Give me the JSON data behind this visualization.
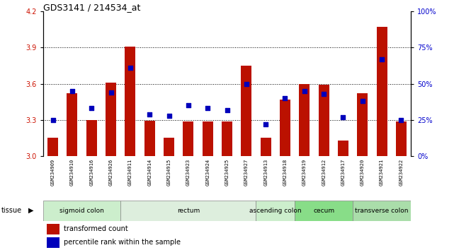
{
  "title": "GDS3141 / 214534_at",
  "samples": [
    "GSM234909",
    "GSM234910",
    "GSM234916",
    "GSM234926",
    "GSM234911",
    "GSM234914",
    "GSM234915",
    "GSM234923",
    "GSM234924",
    "GSM234925",
    "GSM234927",
    "GSM234913",
    "GSM234918",
    "GSM234919",
    "GSM234912",
    "GSM234917",
    "GSM234920",
    "GSM234921",
    "GSM234922"
  ],
  "transformed_count": [
    3.155,
    3.52,
    3.3,
    3.61,
    3.91,
    3.295,
    3.155,
    3.285,
    3.29,
    3.29,
    3.75,
    3.155,
    3.47,
    3.6,
    3.59,
    3.13,
    3.52,
    4.07,
    3.29
  ],
  "percentile_rank": [
    25,
    45,
    33,
    44,
    61,
    29,
    28,
    35,
    33,
    32,
    50,
    22,
    40,
    45,
    43,
    27,
    38,
    67,
    25
  ],
  "ylim_left": [
    3.0,
    4.2
  ],
  "ylim_right": [
    0,
    100
  ],
  "yticks_left": [
    3.0,
    3.3,
    3.6,
    3.9,
    4.2
  ],
  "yticks_right": [
    0,
    25,
    50,
    75,
    100
  ],
  "hlines": [
    3.3,
    3.6,
    3.9
  ],
  "tissue_groups": [
    {
      "label": "sigmoid colon",
      "start": 0,
      "end": 4,
      "color": "#cceecc"
    },
    {
      "label": "rectum",
      "start": 4,
      "end": 11,
      "color": "#ddeedd"
    },
    {
      "label": "ascending colon",
      "start": 11,
      "end": 13,
      "color": "#cceecc"
    },
    {
      "label": "cecum",
      "start": 13,
      "end": 16,
      "color": "#88dd88"
    },
    {
      "label": "transverse colon",
      "start": 16,
      "end": 19,
      "color": "#aaddaa"
    }
  ],
  "bar_color": "#bb1100",
  "dot_color": "#0000bb",
  "bar_width": 0.55,
  "grid_color": "#000000",
  "bg_color": "#ffffff",
  "tick_label_color_left": "#cc1100",
  "tick_label_color_right": "#0000cc",
  "xtick_bg": "#d8d8d8",
  "title_fontsize": 9,
  "legend_fontsize": 7,
  "ytick_fontsize": 7,
  "xtick_fontsize": 5
}
